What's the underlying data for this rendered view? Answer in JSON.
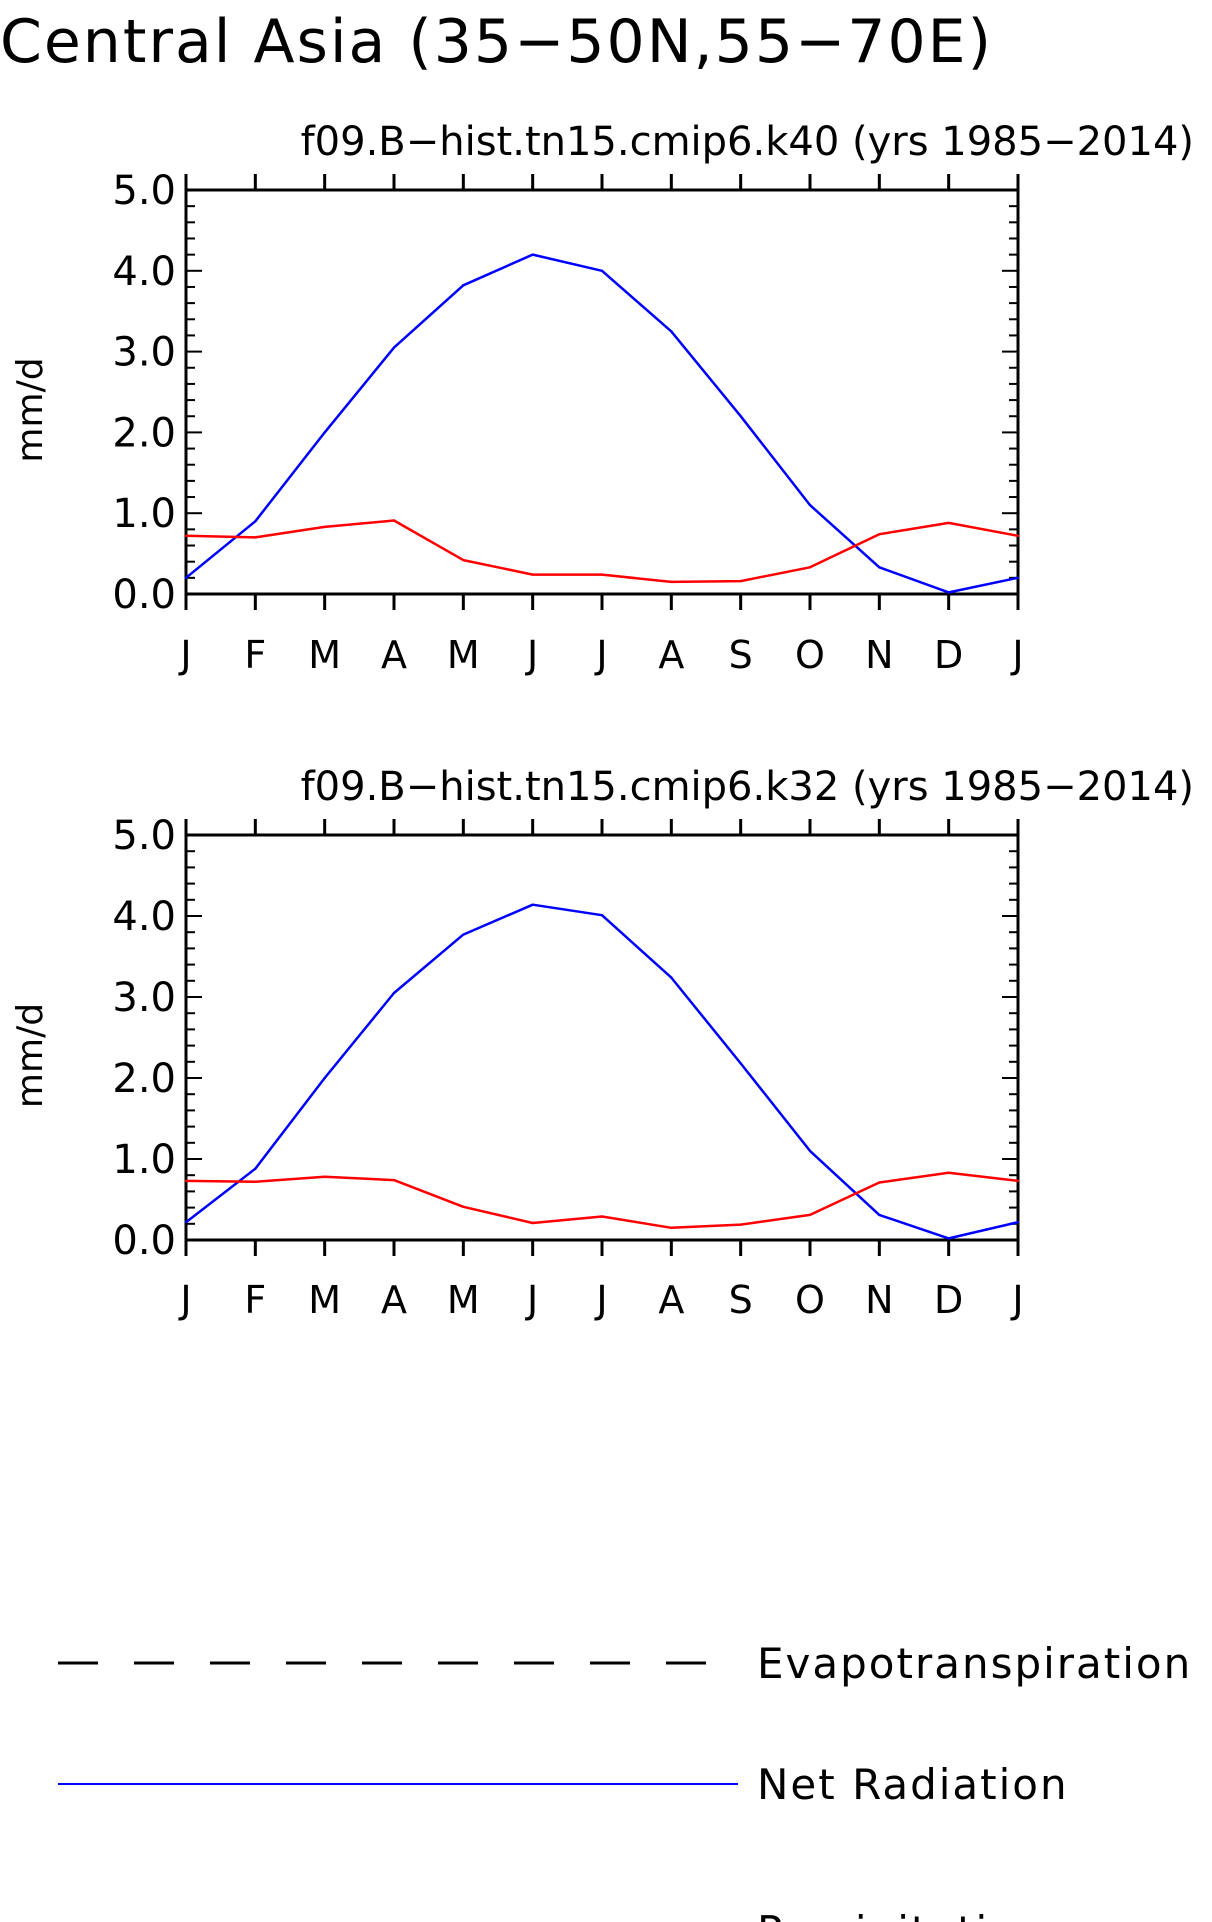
{
  "title": "Central Asia (35−50N,55−70E)",
  "colors": {
    "net_radiation": "#0000ff",
    "precipitation": "#ff0000",
    "evapotranspiration": "#000000"
  },
  "chart_data": [
    {
      "type": "line",
      "title": "f09.B−hist.tn15.cmip6.k40 (yrs 1985−2014)",
      "ylabel": "mm/d",
      "xlabel": "",
      "ylim": [
        0,
        5
      ],
      "yticks": [
        "0.0",
        "1.0",
        "2.0",
        "3.0",
        "4.0",
        "5.0"
      ],
      "categories": [
        "J",
        "F",
        "M",
        "A",
        "M",
        "J",
        "J",
        "A",
        "S",
        "O",
        "N",
        "D",
        "J"
      ],
      "grid": false,
      "series": [
        {
          "name": "Net Radiation",
          "color": "#0000ff",
          "style": "solid",
          "values": [
            0.2,
            0.9,
            2.0,
            3.05,
            3.82,
            4.2,
            4.0,
            3.25,
            2.2,
            1.1,
            0.33,
            0.02,
            0.2
          ]
        },
        {
          "name": "Precipitation",
          "color": "#ff0000",
          "style": "solid",
          "values": [
            0.72,
            0.7,
            0.83,
            0.91,
            0.42,
            0.24,
            0.24,
            0.15,
            0.16,
            0.33,
            0.74,
            0.88,
            0.72
          ]
        }
      ]
    },
    {
      "type": "line",
      "title": "f09.B−hist.tn15.cmip6.k32 (yrs 1985−2014)",
      "ylabel": "mm/d",
      "xlabel": "",
      "ylim": [
        0,
        5
      ],
      "yticks": [
        "0.0",
        "1.0",
        "2.0",
        "3.0",
        "4.0",
        "5.0"
      ],
      "categories": [
        "J",
        "F",
        "M",
        "A",
        "M",
        "J",
        "J",
        "A",
        "S",
        "O",
        "N",
        "D",
        "J"
      ],
      "grid": false,
      "series": [
        {
          "name": "Net Radiation",
          "color": "#0000ff",
          "style": "solid",
          "values": [
            0.22,
            0.88,
            2.0,
            3.05,
            3.77,
            4.14,
            4.01,
            3.24,
            2.18,
            1.1,
            0.31,
            0.02,
            0.22
          ]
        },
        {
          "name": "Precipitation",
          "color": "#ff0000",
          "style": "solid",
          "values": [
            0.73,
            0.72,
            0.78,
            0.74,
            0.41,
            0.21,
            0.29,
            0.15,
            0.19,
            0.31,
            0.71,
            0.83,
            0.73
          ]
        }
      ]
    }
  ],
  "legend": {
    "placement": "bottom",
    "items": [
      {
        "label": "Evapotranspiration",
        "color": "#000000",
        "style": "dashed"
      },
      {
        "label": "Net Radiation",
        "color": "#0000ff",
        "style": "solid"
      },
      {
        "label": "Precipitation",
        "color": "#ff0000",
        "style": "solid"
      }
    ]
  }
}
